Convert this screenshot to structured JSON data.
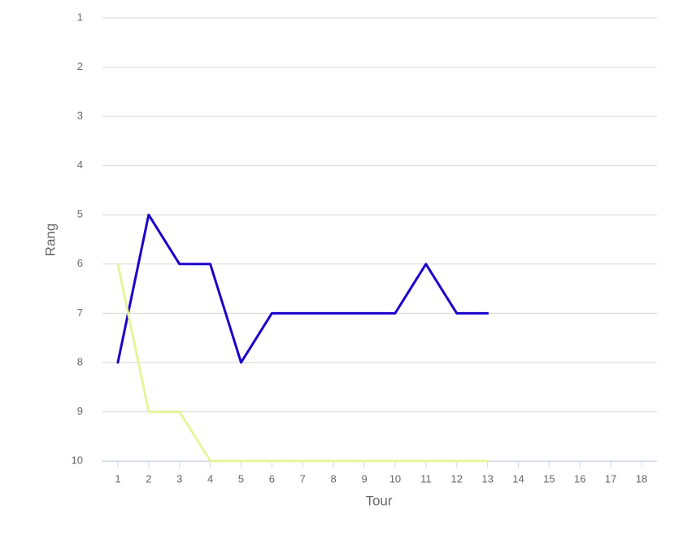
{
  "chart_data": {
    "type": "line",
    "x_label": "Tour",
    "y_label": "Rang",
    "x": [
      1,
      2,
      3,
      4,
      5,
      6,
      7,
      8,
      9,
      10,
      11,
      12,
      13,
      14,
      15,
      16,
      17,
      18
    ],
    "xlim": [
      0.5,
      18.5
    ],
    "xticks": [
      1,
      2,
      3,
      4,
      5,
      6,
      7,
      8,
      9,
      10,
      11,
      12,
      13,
      14,
      15,
      16,
      17,
      18
    ],
    "ylim": [
      1,
      10
    ],
    "y_reversed": true,
    "yticks": [
      1,
      2,
      3,
      4,
      5,
      6,
      7,
      8,
      9,
      10
    ],
    "grid": true,
    "series": [
      {
        "color": "#1b00cc",
        "values": [
          8,
          5,
          6,
          6,
          8,
          7,
          7,
          7,
          7,
          7,
          6,
          7,
          7,
          null,
          null,
          null,
          null,
          null
        ]
      },
      {
        "color": "#e6f59a",
        "values": [
          6,
          9,
          9,
          10,
          10,
          10,
          10,
          10,
          10,
          10,
          10,
          10,
          10,
          null,
          null,
          null,
          null,
          null
        ]
      }
    ]
  }
}
